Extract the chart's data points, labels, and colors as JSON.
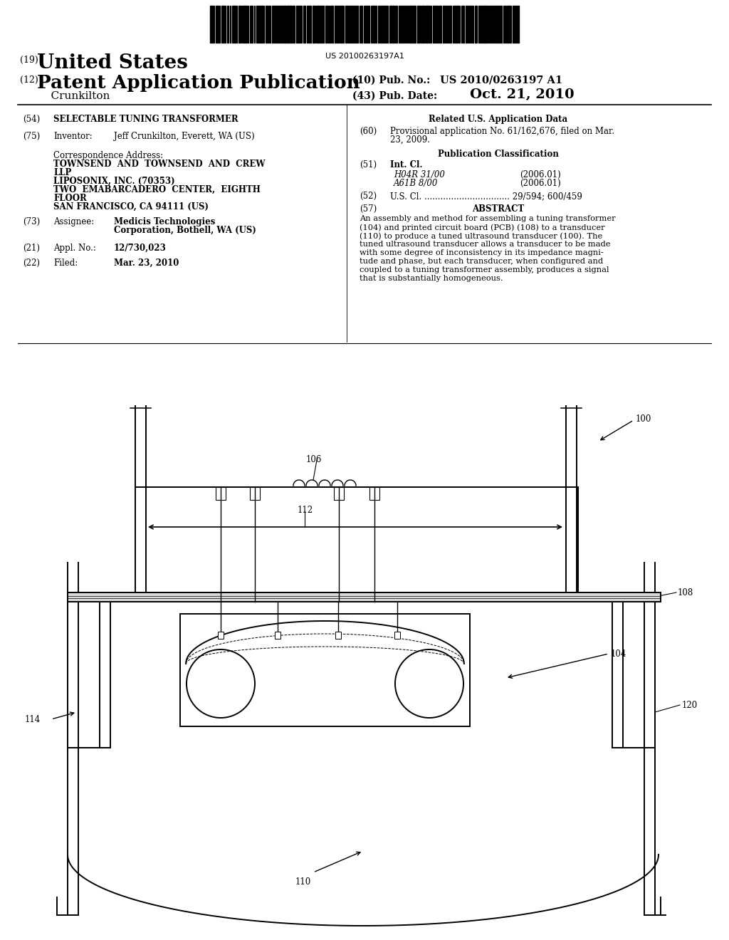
{
  "background_color": "#ffffff",
  "barcode_text": "US 20100263197A1",
  "title_19_prefix": "(19)",
  "title_19_main": "United States",
  "title_12_prefix": "(12)",
  "title_12_main": "Patent Application Publication",
  "pub_no_label": "(10) Pub. No.:",
  "pub_no_value": "US 2010/0263197 A1",
  "inventor_name": "Crunkilton",
  "pub_date_label": "(43) Pub. Date:",
  "pub_date_value": "Oct. 21, 2010",
  "field54_value": "SELECTABLE TUNING TRANSFORMER",
  "field75_value": "Jeff Crunkilton, Everett, WA (US)",
  "corr_address_label": "Correspondence Address:",
  "corr_line1": "TOWNSEND  AND  TOWNSEND  AND  CREW",
  "corr_line2": "LLP",
  "corr_line3": "LIPOSONIX, INC. (70353)",
  "corr_line4": "TWO  EMABARCADERO  CENTER,  EIGHTH",
  "corr_line5": "FLOOR",
  "corr_line6": "SAN FRANCISCO, CA 94111 (US)",
  "field73_value1": "Medicis Technologies",
  "field73_value2": "Corporation, Bothell, WA (US)",
  "field21_value": "12/730,023",
  "field22_value": "Mar. 23, 2010",
  "related_data_title": "Related U.S. Application Data",
  "field60_line1": "Provisional application No. 61/162,676, filed on Mar.",
  "field60_line2": "23, 2009.",
  "pub_class_title": "Publication Classification",
  "field51_class1": "H04R 31/00",
  "field51_date1": "(2006.01)",
  "field51_class2": "A61B 8/00",
  "field51_date2": "(2006.01)",
  "field52_dots": "................................",
  "field52_value": "29/594; 600/459",
  "field57_key": "ABSTRACT",
  "abstract_line1": "An assembly and method for assembling a tuning transformer",
  "abstract_line2": "(104) and printed circuit board (PCB) (108) to a transducer",
  "abstract_line3": "(110) to produce a tuned ultrasound transducer (100). The",
  "abstract_line4": "tuned ultrasound transducer allows a transducer to be made",
  "abstract_line5": "with some degree of inconsistency in its impedance magni-",
  "abstract_line6": "tude and phase, but each transducer, when configured and",
  "abstract_line7": "coupled to a tuning transformer assembly, produces a signal",
  "abstract_line8": "that is substantially homogeneous.",
  "line_color": "#000000"
}
